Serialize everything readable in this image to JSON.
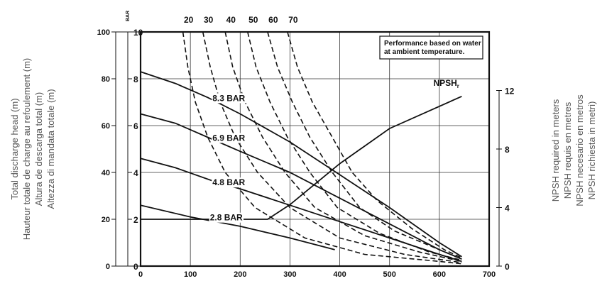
{
  "chart_data": {
    "type": "line",
    "title": "",
    "note": [
      "Performance based on water",
      "at ambient temperature."
    ],
    "x_axis": {
      "ticks": [
        "0",
        "100",
        "200",
        "300",
        "400",
        "500",
        "600",
        "700"
      ],
      "range": [
        0,
        700
      ],
      "label": ""
    },
    "y_axis_left_m": {
      "label_lines": [
        "Total discharge head (m)",
        "Hauteur totale de charge au refoulement (m)",
        "Altura de descarga total (m)",
        "Altezza di mandata totale (m)"
      ],
      "ticks": [
        "0",
        "20",
        "40",
        "60",
        "80",
        "100"
      ],
      "range": [
        0,
        100
      ]
    },
    "y_axis_left_bar": {
      "unit": "BAR",
      "ticks": [
        "0",
        "2",
        "4",
        "6",
        "8",
        "10"
      ],
      "range": [
        0,
        10
      ]
    },
    "y_axis_right_npsh": {
      "label_lines": [
        "NPSH required in meters",
        "NPSH requis en metres",
        "NPSH necesario en metros",
        "NPSH richiesta in metri)"
      ],
      "ticks": [
        "0",
        "4",
        "8",
        "12"
      ],
      "range": [
        0,
        16
      ]
    },
    "top_scale": {
      "ticks": [
        "20",
        "30",
        "40",
        "50",
        "60",
        "70"
      ]
    },
    "grid": true,
    "series": [
      {
        "name": "8.3 BAR",
        "style": "solid",
        "label": "8.3 BAR",
        "points": [
          [
            0,
            83
          ],
          [
            70,
            78
          ],
          [
            135,
            72
          ],
          [
            200,
            65
          ],
          [
            300,
            53
          ],
          [
            400,
            39
          ],
          [
            500,
            25
          ],
          [
            600,
            10
          ],
          [
            645,
            4
          ]
        ]
      },
      {
        "name": "6.9 BAR",
        "style": "solid",
        "label": "6.9 BAR",
        "points": [
          [
            0,
            65
          ],
          [
            70,
            61
          ],
          [
            135,
            55
          ],
          [
            200,
            49
          ],
          [
            300,
            40
          ],
          [
            400,
            29
          ],
          [
            500,
            18
          ],
          [
            600,
            7
          ],
          [
            645,
            3
          ]
        ]
      },
      {
        "name": "4.8 BAR",
        "style": "solid",
        "label": "4.8 BAR",
        "points": [
          [
            0,
            46
          ],
          [
            70,
            42
          ],
          [
            150,
            36
          ],
          [
            200,
            33
          ],
          [
            300,
            26
          ],
          [
            400,
            19
          ],
          [
            500,
            12
          ],
          [
            600,
            5
          ],
          [
            645,
            2
          ]
        ]
      },
      {
        "name": "2.8 BAR",
        "style": "solid",
        "label": "2.8 BAR",
        "points": [
          [
            0,
            26
          ],
          [
            100,
            21
          ],
          [
            150,
            19
          ],
          [
            200,
            17
          ],
          [
            300,
            12
          ],
          [
            390,
            7
          ]
        ]
      },
      {
        "name": "NPSHr",
        "style": "solid",
        "axis": "right",
        "label": "NPSHr",
        "points": [
          [
            0,
            3.2
          ],
          [
            255,
            3.2
          ],
          [
            300,
            4.2
          ],
          [
            400,
            7.0
          ],
          [
            500,
            9.4
          ],
          [
            645,
            11.6
          ]
        ]
      },
      {
        "name": "20",
        "style": "dashed",
        "points": [
          [
            85,
            100
          ],
          [
            95,
            85
          ],
          [
            110,
            70
          ],
          [
            135,
            55
          ],
          [
            170,
            40
          ],
          [
            230,
            25
          ],
          [
            330,
            12
          ],
          [
            450,
            5
          ],
          [
            600,
            2
          ],
          [
            645,
            1
          ]
        ]
      },
      {
        "name": "30",
        "style": "dashed",
        "points": [
          [
            125,
            100
          ],
          [
            140,
            85
          ],
          [
            160,
            70
          ],
          [
            190,
            55
          ],
          [
            235,
            40
          ],
          [
            300,
            25
          ],
          [
            400,
            12
          ],
          [
            530,
            5
          ],
          [
            645,
            1.5
          ]
        ]
      },
      {
        "name": "40",
        "style": "dashed",
        "points": [
          [
            170,
            100
          ],
          [
            185,
            85
          ],
          [
            210,
            70
          ],
          [
            245,
            55
          ],
          [
            290,
            40
          ],
          [
            350,
            25
          ],
          [
            450,
            13
          ],
          [
            560,
            6
          ],
          [
            645,
            2
          ]
        ]
      },
      {
        "name": "50",
        "style": "dashed",
        "points": [
          [
            215,
            100
          ],
          [
            232,
            85
          ],
          [
            260,
            70
          ],
          [
            295,
            55
          ],
          [
            340,
            40
          ],
          [
            395,
            25
          ],
          [
            480,
            14
          ],
          [
            580,
            6
          ],
          [
            645,
            2.5
          ]
        ]
      },
      {
        "name": "60",
        "style": "dashed",
        "points": [
          [
            255,
            100
          ],
          [
            275,
            85
          ],
          [
            305,
            70
          ],
          [
            340,
            55
          ],
          [
            385,
            40
          ],
          [
            440,
            25
          ],
          [
            510,
            15
          ],
          [
            600,
            7
          ],
          [
            645,
            3
          ]
        ]
      },
      {
        "name": "70",
        "style": "dashed",
        "points": [
          [
            295,
            100
          ],
          [
            315,
            85
          ],
          [
            345,
            70
          ],
          [
            385,
            55
          ],
          [
            425,
            40
          ],
          [
            475,
            28
          ],
          [
            545,
            16
          ],
          [
            610,
            7
          ],
          [
            645,
            3.5
          ]
        ]
      }
    ],
    "series_label_positions": [
      "inline"
    ]
  }
}
